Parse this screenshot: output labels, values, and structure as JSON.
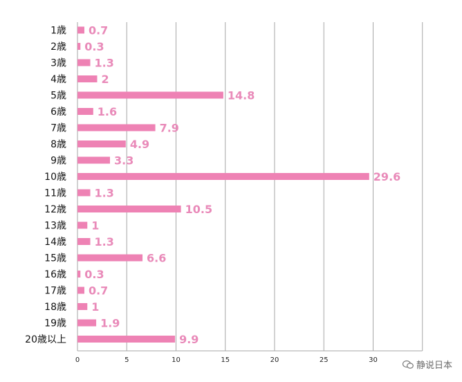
{
  "chart_data": {
    "type": "bar",
    "orientation": "horizontal",
    "categories": [
      "1歳",
      "2歳",
      "3歳",
      "4歳",
      "5歳",
      "6歳",
      "7歳",
      "8歳",
      "9歳",
      "10歳",
      "11歳",
      "12歳",
      "13歳",
      "14歳",
      "15歳",
      "16歳",
      "17歳",
      "18歳",
      "19歳",
      "20歳以上"
    ],
    "values": [
      0.7,
      0.3,
      1.3,
      2,
      14.8,
      1.6,
      7.9,
      4.9,
      3.3,
      29.6,
      1.3,
      10.5,
      1,
      1.3,
      6.6,
      0.3,
      0.7,
      1,
      1.9,
      9.9
    ],
    "data_labels": [
      "0.7",
      "0.3",
      "1.3",
      "2",
      "14.8",
      "1.6",
      "7.9",
      "4.9",
      "3.3",
      "29.6",
      "1.3",
      "10.5",
      "1",
      "1.3",
      "6.6",
      "0.3",
      "0.7",
      "1",
      "1.9",
      "9.9"
    ],
    "x_ticks": [
      "0",
      "5",
      "10",
      "15",
      "20",
      "25",
      "30"
    ],
    "xlim": [
      0,
      35
    ],
    "grid": "vertical",
    "bar_color": "#ee82b4",
    "label_color": "#e98ab9",
    "gridline_color": "#a6a6a6",
    "title": "",
    "xlabel": "",
    "ylabel": ""
  },
  "watermark": {
    "text": "静说日本",
    "icon": "chat-bubble-icon"
  }
}
